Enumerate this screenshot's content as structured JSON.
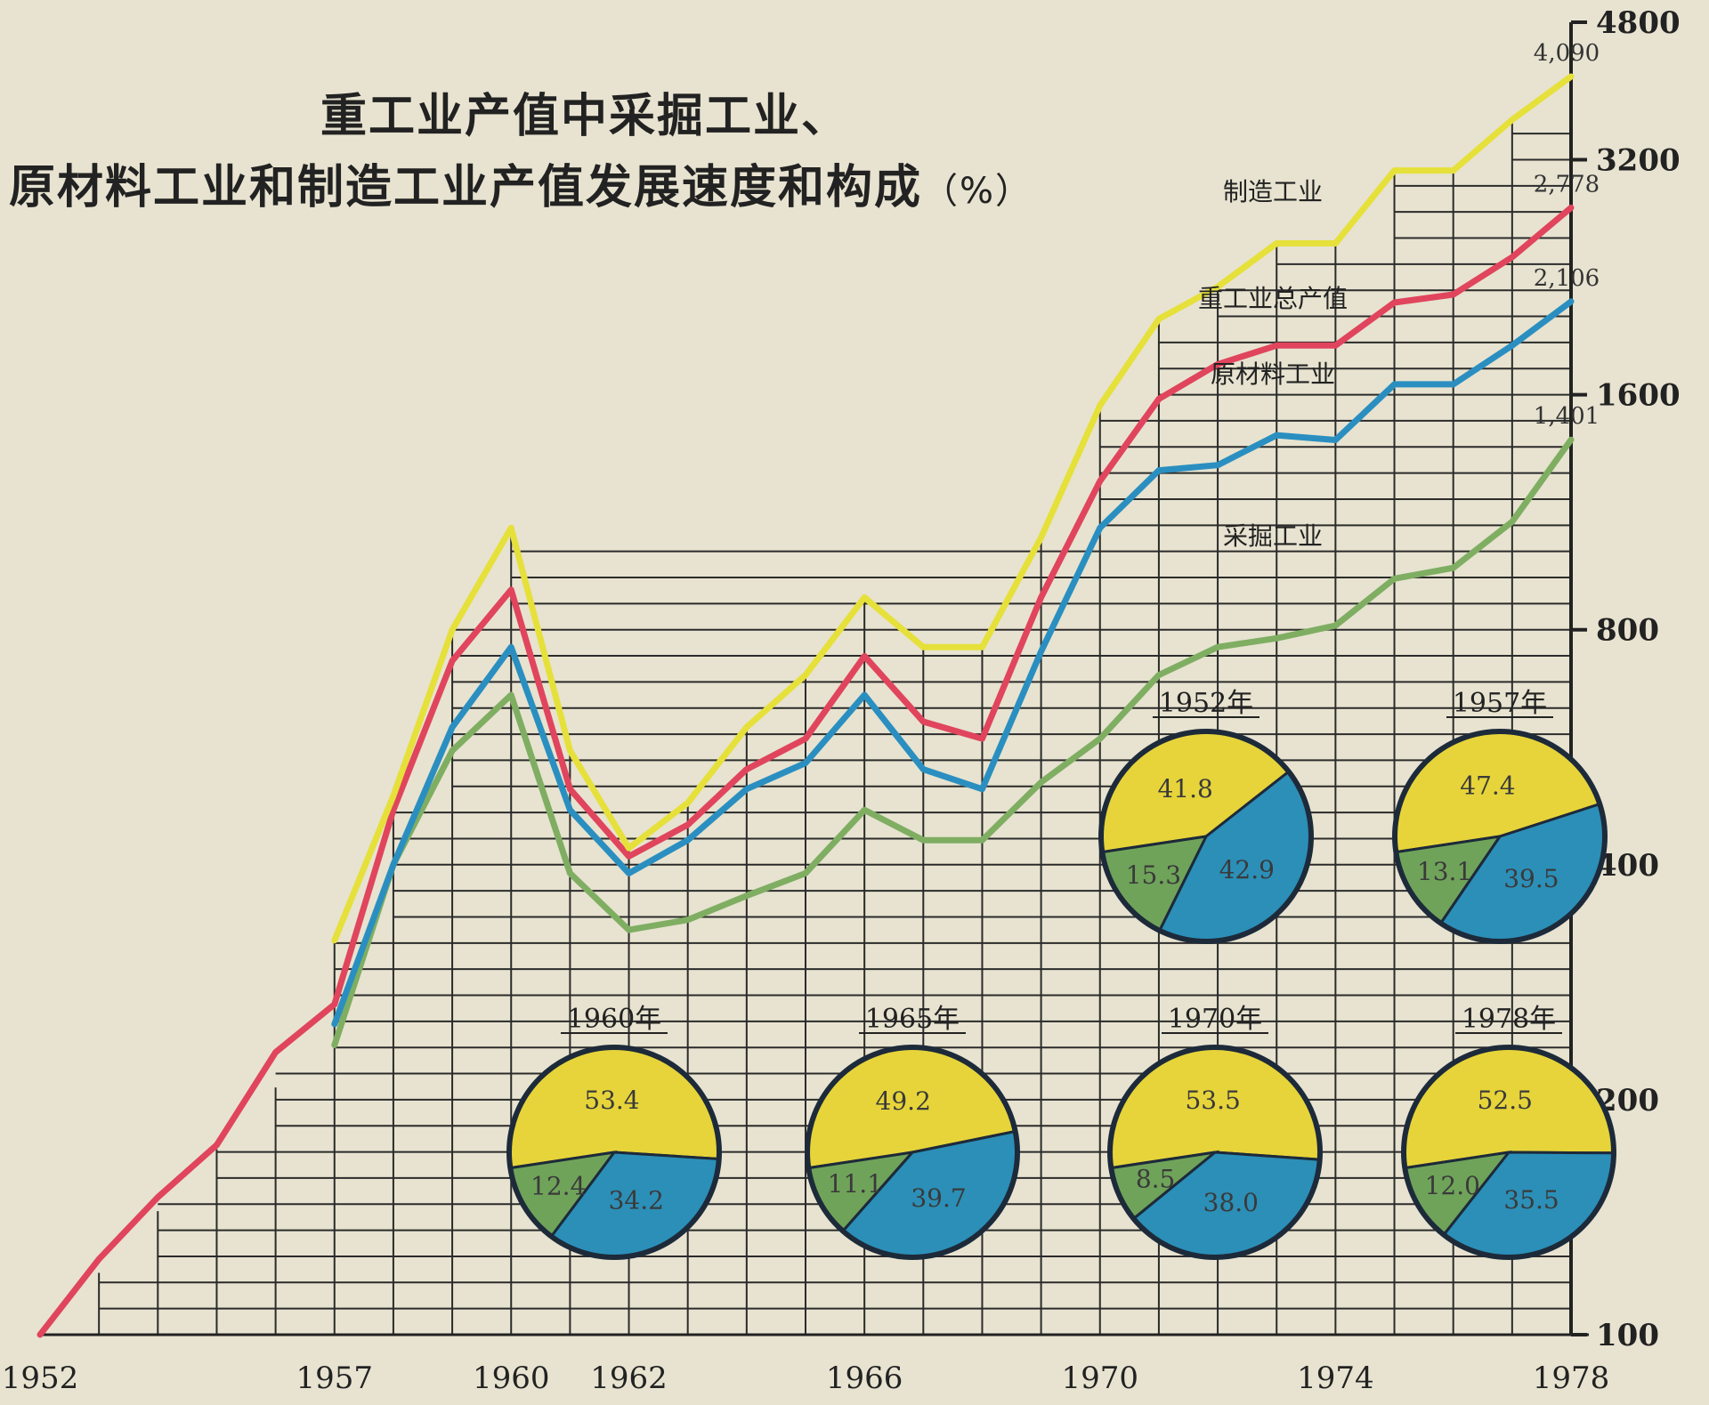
{
  "chart_data": {
    "type": "line",
    "title_line1": "重工业产值中采掘工业、",
    "title_line2": "原材料工业和制造工业产值发展速度和构成",
    "title_unit": "（%）",
    "y_scale": "log",
    "ylim": [
      100,
      4800
    ],
    "y_ticks": [
      "100",
      "200",
      "400",
      "800",
      "1600",
      "3200",
      "4800"
    ],
    "y_tick_values": [
      100,
      200,
      400,
      800,
      1600,
      3200,
      4800
    ],
    "x_ticks": [
      "1952",
      "1957",
      "1960",
      "1962",
      "1966",
      "1970",
      "1974",
      "1978"
    ],
    "x_tick_values": [
      1952,
      1957,
      1960,
      1962,
      1966,
      1970,
      1974,
      1978
    ],
    "xlim": [
      1952,
      1978
    ],
    "grid": true,
    "series": [
      {
        "name": "制造工业",
        "color": "#e6e03a",
        "end_label": "4,090",
        "points": [
          [
            1957,
            320
          ],
          [
            1958,
            490
          ],
          [
            1959,
            800
          ],
          [
            1960,
            1080
          ],
          [
            1961,
            560
          ],
          [
            1962,
            420
          ],
          [
            1963,
            480
          ],
          [
            1964,
            600
          ],
          [
            1965,
            700
          ],
          [
            1966,
            880
          ],
          [
            1967,
            760
          ],
          [
            1968,
            760
          ],
          [
            1969,
            1050
          ],
          [
            1970,
            1550
          ],
          [
            1971,
            2000
          ],
          [
            1972,
            2200
          ],
          [
            1973,
            2500
          ],
          [
            1974,
            2500
          ],
          [
            1975,
            3100
          ],
          [
            1976,
            3100
          ],
          [
            1977,
            3600
          ],
          [
            1978,
            4090
          ]
        ]
      },
      {
        "name": "重工业总产值",
        "color": "#e0455d",
        "end_label": "2,778",
        "points": [
          [
            1952,
            100
          ],
          [
            1953,
            125
          ],
          [
            1954,
            150
          ],
          [
            1955,
            175
          ],
          [
            1956,
            230
          ],
          [
            1957,
            265
          ],
          [
            1958,
            470
          ],
          [
            1959,
            730
          ],
          [
            1960,
            900
          ],
          [
            1961,
            500
          ],
          [
            1962,
            410
          ],
          [
            1963,
            450
          ],
          [
            1964,
            530
          ],
          [
            1965,
            580
          ],
          [
            1966,
            740
          ],
          [
            1967,
            610
          ],
          [
            1968,
            580
          ],
          [
            1969,
            880
          ],
          [
            1970,
            1240
          ],
          [
            1971,
            1580
          ],
          [
            1972,
            1750
          ],
          [
            1973,
            1850
          ],
          [
            1974,
            1850
          ],
          [
            1975,
            2100
          ],
          [
            1976,
            2150
          ],
          [
            1977,
            2400
          ],
          [
            1978,
            2778
          ]
        ]
      },
      {
        "name": "原材料工业",
        "color": "#2a8fc0",
        "end_label": "2,106",
        "points": [
          [
            1957,
            250
          ],
          [
            1958,
            400
          ],
          [
            1959,
            600
          ],
          [
            1960,
            760
          ],
          [
            1961,
            470
          ],
          [
            1962,
            390
          ],
          [
            1963,
            430
          ],
          [
            1964,
            500
          ],
          [
            1965,
            540
          ],
          [
            1966,
            660
          ],
          [
            1967,
            530
          ],
          [
            1968,
            500
          ],
          [
            1969,
            750
          ],
          [
            1970,
            1080
          ],
          [
            1971,
            1280
          ],
          [
            1972,
            1300
          ],
          [
            1973,
            1420
          ],
          [
            1974,
            1400
          ],
          [
            1975,
            1650
          ],
          [
            1976,
            1650
          ],
          [
            1977,
            1850
          ],
          [
            1978,
            2106
          ]
        ]
      },
      {
        "name": "采掘工业",
        "color": "#7fae62",
        "end_label": "1,401",
        "points": [
          [
            1957,
            235
          ],
          [
            1958,
            400
          ],
          [
            1959,
            560
          ],
          [
            1960,
            660
          ],
          [
            1961,
            390
          ],
          [
            1962,
            330
          ],
          [
            1963,
            340
          ],
          [
            1964,
            365
          ],
          [
            1965,
            390
          ],
          [
            1966,
            470
          ],
          [
            1967,
            430
          ],
          [
            1968,
            430
          ],
          [
            1969,
            510
          ],
          [
            1970,
            580
          ],
          [
            1971,
            700
          ],
          [
            1972,
            760
          ],
          [
            1973,
            780
          ],
          [
            1974,
            810
          ],
          [
            1975,
            930
          ],
          [
            1976,
            960
          ],
          [
            1977,
            1100
          ],
          [
            1978,
            1401
          ]
        ]
      }
    ],
    "pies": [
      {
        "year_label": "1952年",
        "segments": [
          {
            "name": "制造工业",
            "value": 41.8,
            "label": "41.8",
            "color": "#e6d43a"
          },
          {
            "name": "原材料工业",
            "value": 42.9,
            "label": "42.9",
            "color": "#2b8fb8"
          },
          {
            "name": "采掘",
            "value": 15.3,
            "label": "15.3",
            "color": "#6fa35a"
          }
        ],
        "inner_labels": [
          "制造工业",
          "原材料工业",
          "采掘"
        ]
      },
      {
        "year_label": "1957年",
        "segments": [
          {
            "name": "制造工业",
            "value": 47.4,
            "label": "47.4",
            "color": "#e6d43a"
          },
          {
            "name": "原材料工业",
            "value": 39.5,
            "label": "39.5",
            "color": "#2b8fb8"
          },
          {
            "name": "采掘",
            "value": 13.1,
            "label": "13.1",
            "color": "#6fa35a"
          }
        ]
      },
      {
        "year_label": "1960年",
        "segments": [
          {
            "name": "制造工业",
            "value": 53.4,
            "label": "53.4",
            "color": "#e6d43a"
          },
          {
            "name": "原材料工业",
            "value": 34.2,
            "label": "34.2",
            "color": "#2b8fb8"
          },
          {
            "name": "采掘",
            "value": 12.4,
            "label": "12.4",
            "color": "#6fa35a"
          }
        ]
      },
      {
        "year_label": "1965年",
        "segments": [
          {
            "name": "制造工业",
            "value": 49.2,
            "label": "49.2",
            "color": "#e6d43a"
          },
          {
            "name": "原材料工业",
            "value": 39.7,
            "label": "39.7",
            "color": "#2b8fb8"
          },
          {
            "name": "采掘",
            "value": 11.1,
            "label": "11.1",
            "color": "#6fa35a"
          }
        ]
      },
      {
        "year_label": "1970年",
        "segments": [
          {
            "name": "制造工业",
            "value": 53.5,
            "label": "53.5",
            "color": "#e6d43a"
          },
          {
            "name": "原材料工业",
            "value": 38.0,
            "label": "38.0",
            "color": "#2b8fb8"
          },
          {
            "name": "采掘",
            "value": 8.5,
            "label": "8.5",
            "color": "#6fa35a"
          }
        ]
      },
      {
        "year_label": "1978年",
        "segments": [
          {
            "name": "制造工业",
            "value": 52.5,
            "label": "52.5",
            "color": "#e6d43a"
          },
          {
            "name": "原材料工业",
            "value": 35.5,
            "label": "35.5",
            "color": "#2b8fb8"
          },
          {
            "name": "采掘",
            "value": 12.0,
            "label": "12.0",
            "color": "#6fa35a"
          }
        ]
      }
    ]
  }
}
